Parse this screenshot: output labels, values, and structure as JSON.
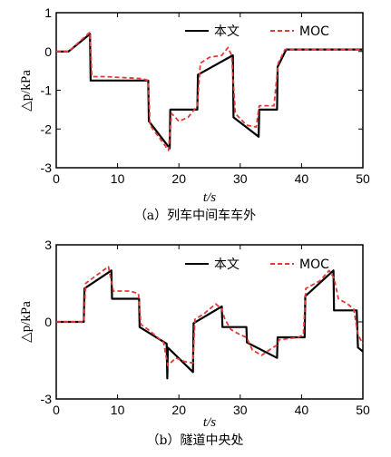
{
  "chart_data": [
    {
      "type": "line",
      "caption": "（a）列车中间车车外",
      "xlabel": "t/s",
      "ylabel": "△p/kPa",
      "xlim": [
        0,
        50
      ],
      "ylim": [
        -3,
        1
      ],
      "xticks": [
        0,
        10,
        20,
        30,
        40,
        50
      ],
      "yticks": [
        -3,
        -2,
        -1,
        0,
        1
      ],
      "legend_position": "top-right",
      "series": [
        {
          "name": "本文",
          "color": "#000000",
          "style": "solid",
          "points": [
            [
              0,
              0
            ],
            [
              2,
              0
            ],
            [
              5.5,
              0.45
            ],
            [
              5.6,
              -0.75
            ],
            [
              15,
              -0.75
            ],
            [
              15.1,
              -1.8
            ],
            [
              18.5,
              -2.5
            ],
            [
              18.6,
              -1.5
            ],
            [
              23,
              -1.5
            ],
            [
              23.1,
              -0.6
            ],
            [
              28.8,
              -0.1
            ],
            [
              28.9,
              -1.7
            ],
            [
              33,
              -2.2
            ],
            [
              33.1,
              -1.5
            ],
            [
              36,
              -1.5
            ],
            [
              36.1,
              -0.4
            ],
            [
              37.5,
              0.05
            ],
            [
              50,
              0.05
            ]
          ]
        },
        {
          "name": "MOC",
          "color": "#e53935",
          "style": "dashed",
          "points": [
            [
              0,
              0
            ],
            [
              2,
              0
            ],
            [
              5.5,
              0.5
            ],
            [
              5.8,
              -0.65
            ],
            [
              8,
              -0.65
            ],
            [
              14,
              -0.7
            ],
            [
              15,
              -0.75
            ],
            [
              15.3,
              -1.9
            ],
            [
              18.3,
              -2.55
            ],
            [
              18.8,
              -1.6
            ],
            [
              20,
              -1.8
            ],
            [
              21.5,
              -1.7
            ],
            [
              23,
              -1.4
            ],
            [
              23.5,
              -0.3
            ],
            [
              25,
              -0.15
            ],
            [
              27,
              -0.1
            ],
            [
              28,
              0.1
            ],
            [
              28.6,
              -0.1
            ],
            [
              29.2,
              -1.6
            ],
            [
              31,
              -1.9
            ],
            [
              32.6,
              -1.95
            ],
            [
              33.1,
              -1.4
            ],
            [
              35.5,
              -1.4
            ],
            [
              36.2,
              -0.3
            ],
            [
              37.3,
              0.05
            ],
            [
              50,
              0.05
            ]
          ]
        }
      ]
    },
    {
      "type": "line",
      "caption": "（b）隧道中央处",
      "xlabel": "t/s",
      "ylabel": "△p/kPa",
      "xlim": [
        0,
        50
      ],
      "ylim": [
        -3,
        3
      ],
      "xticks": [
        0,
        10,
        20,
        30,
        40,
        50
      ],
      "yticks": [
        -3,
        0,
        3
      ],
      "legend_position": "top-right",
      "series": [
        {
          "name": "本文",
          "color": "#000000",
          "style": "solid",
          "points": [
            [
              0,
              0
            ],
            [
              4.5,
              0
            ],
            [
              4.6,
              1.3
            ],
            [
              9,
              2.0
            ],
            [
              9.1,
              0.9
            ],
            [
              13.5,
              0.9
            ],
            [
              13.6,
              -0.2
            ],
            [
              18,
              -0.85
            ],
            [
              18.1,
              -2.2
            ],
            [
              18.2,
              -1.0
            ],
            [
              22.3,
              -1.95
            ],
            [
              22.4,
              -0.05
            ],
            [
              27,
              0.6
            ],
            [
              27.1,
              -0.2
            ],
            [
              31,
              -0.2
            ],
            [
              31.1,
              -0.8
            ],
            [
              36,
              -1.4
            ],
            [
              36.1,
              -0.6
            ],
            [
              40.5,
              -0.6
            ],
            [
              40.6,
              1.0
            ],
            [
              45.2,
              2.0
            ],
            [
              45.3,
              0.45
            ],
            [
              49,
              0.45
            ],
            [
              49.2,
              -1.0
            ],
            [
              50,
              -1.15
            ]
          ]
        },
        {
          "name": "MOC",
          "color": "#e53935",
          "style": "dashed",
          "points": [
            [
              0,
              0
            ],
            [
              4.5,
              0
            ],
            [
              4.8,
              1.5
            ],
            [
              6.5,
              1.8
            ],
            [
              8.5,
              2.15
            ],
            [
              9.3,
              1.2
            ],
            [
              12,
              1.2
            ],
            [
              13.4,
              1.1
            ],
            [
              13.8,
              -0.1
            ],
            [
              15,
              -0.3
            ],
            [
              17.5,
              -0.8
            ],
            [
              18.2,
              -1.7
            ],
            [
              19.5,
              -1.4
            ],
            [
              21,
              -1.55
            ],
            [
              22.3,
              -1.6
            ],
            [
              22.6,
              0.1
            ],
            [
              24,
              0.3
            ],
            [
              26,
              0.7
            ],
            [
              27,
              0.5
            ],
            [
              27.5,
              0.1
            ],
            [
              28.5,
              -0.3
            ],
            [
              30,
              -0.5
            ],
            [
              31,
              -0.6
            ],
            [
              32,
              -1.1
            ],
            [
              33.5,
              -1.3
            ],
            [
              35,
              -1.05
            ],
            [
              36,
              -0.9
            ],
            [
              36.3,
              -0.7
            ],
            [
              39.5,
              -0.6
            ],
            [
              40.3,
              -0.5
            ],
            [
              40.7,
              1.3
            ],
            [
              43,
              1.6
            ],
            [
              44.5,
              2.0
            ],
            [
              45.3,
              1.7
            ],
            [
              46,
              0.9
            ],
            [
              47.5,
              0.7
            ],
            [
              48.5,
              0.5
            ],
            [
              49.2,
              -0.5
            ],
            [
              50,
              -0.85
            ]
          ]
        }
      ]
    }
  ]
}
